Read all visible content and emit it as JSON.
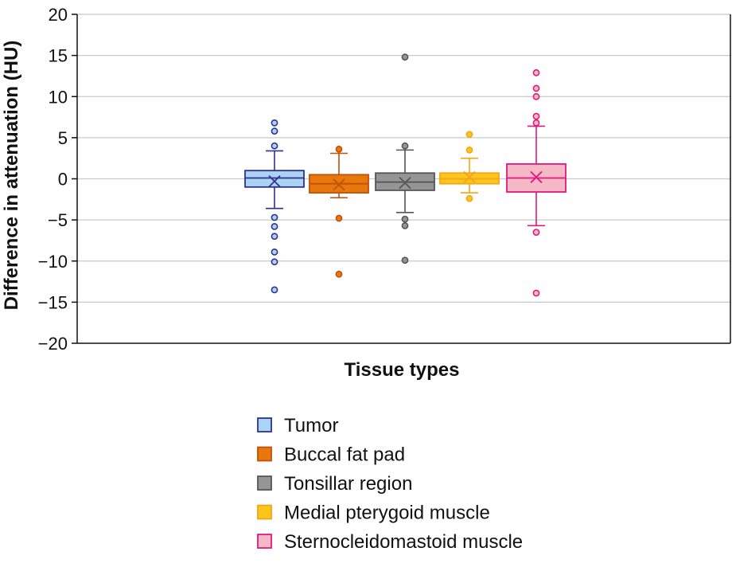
{
  "chart_data": {
    "type": "box",
    "title": "",
    "xlabel": "Tissue types",
    "ylabel": "Difference in attenuation (HU)",
    "ylim": [
      -20,
      20
    ],
    "yticks": [
      20,
      15,
      10,
      5,
      0,
      -5,
      -10,
      -15,
      -20
    ],
    "ytick_labels": [
      "20",
      "15",
      "10",
      "5",
      "0",
      "−5",
      "−10",
      "−15",
      "−20"
    ],
    "grid": true,
    "legend_position": "bottom",
    "series": [
      {
        "name": "Tumor",
        "color": "#2e3192",
        "fill": "#aad4f2",
        "q1": -1.0,
        "median": 0.1,
        "q3": 1.0,
        "mean": -0.3,
        "whisker_low": -3.6,
        "whisker_high": 3.4,
        "outliers": [
          6.8,
          5.8,
          4.0,
          -4.7,
          -5.8,
          -7.0,
          -8.9,
          -10.1,
          -13.5
        ]
      },
      {
        "name": "Buccal fat pad",
        "color": "#c0500a",
        "fill": "#e8780c",
        "q1": -1.7,
        "median": -0.6,
        "q3": 0.5,
        "mean": -0.7,
        "whisker_low": -2.3,
        "whisker_high": 3.1,
        "outliers": [
          3.6,
          -4.8,
          -11.6
        ]
      },
      {
        "name": "Tonsillar region",
        "color": "#555555",
        "fill": "#959595",
        "q1": -1.4,
        "median": -0.4,
        "q3": 0.7,
        "mean": -0.5,
        "whisker_low": -4.1,
        "whisker_high": 3.5,
        "outliers": [
          14.8,
          4.0,
          -4.9,
          -5.7,
          -9.9
        ]
      },
      {
        "name": "Medial pterygoid muscle",
        "color": "#f2a51c",
        "fill": "#ffc61a",
        "q1": -0.6,
        "median": 0.0,
        "q3": 0.7,
        "mean": 0.2,
        "whisker_low": -1.7,
        "whisker_high": 2.5,
        "outliers": [
          5.4,
          3.5,
          -2.4
        ]
      },
      {
        "name": "Sternocleidomastoid muscle",
        "color": "#e0197c",
        "fill": "#f4b8c6",
        "q1": -1.6,
        "median": 0.1,
        "q3": 1.8,
        "mean": 0.2,
        "whisker_low": -5.7,
        "whisker_high": 6.4,
        "outliers": [
          12.9,
          11.0,
          10.0,
          7.6,
          6.8,
          -6.5,
          -13.9
        ]
      }
    ]
  }
}
